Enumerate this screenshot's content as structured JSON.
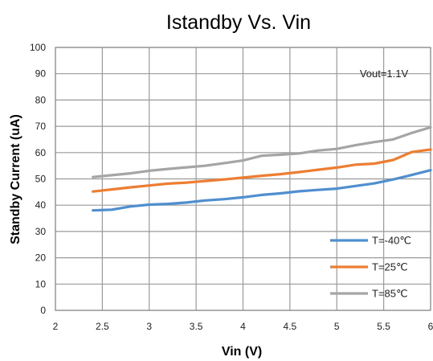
{
  "chart_data": {
    "type": "line",
    "title": "Istandby Vs. Vin",
    "xlabel": "Vin (V)",
    "ylabel": "Standby Current (uA)",
    "xlim": [
      2,
      6
    ],
    "ylim": [
      0,
      100
    ],
    "xticks": [
      "2",
      "2.5",
      "3",
      "3.5",
      "4",
      "4.5",
      "5",
      "5.5",
      "6"
    ],
    "yticks": [
      "0",
      "10",
      "20",
      "30",
      "40",
      "50",
      "60",
      "70",
      "80",
      "90",
      "100"
    ],
    "grid": true,
    "legend_position": "bottom-right",
    "annotation": "Vout=1.1V",
    "x": [
      2.4,
      2.6,
      2.8,
      3.0,
      3.2,
      3.4,
      3.6,
      3.8,
      4.0,
      4.2,
      4.4,
      4.6,
      4.8,
      5.0,
      5.2,
      5.4,
      5.6,
      5.8,
      6.0
    ],
    "series": [
      {
        "name": "T=-40℃",
        "color": "#4f8fcf",
        "values": [
          38,
          38.3,
          39.5,
          40.2,
          40.5,
          41,
          41.8,
          42.3,
          43,
          43.9,
          44.5,
          45.3,
          45.8,
          46.3,
          47.3,
          48.3,
          49.8,
          51.5,
          53.3
        ]
      },
      {
        "name": "T=25℃",
        "color": "#ed7d31",
        "values": [
          45.2,
          46,
          46.8,
          47.5,
          48.2,
          48.6,
          49.2,
          49.8,
          50.5,
          51.2,
          51.8,
          52.6,
          53.5,
          54.3,
          55.4,
          55.8,
          57.2,
          60.2,
          61.2
        ]
      },
      {
        "name": "T=85℃",
        "color": "#a5a5a5",
        "values": [
          50.7,
          51.4,
          52.1,
          53.1,
          53.8,
          54.4,
          55,
          56,
          57,
          58.8,
          59.2,
          59.7,
          60.8,
          61.4,
          62.8,
          64,
          65,
          67.5,
          69.6
        ]
      }
    ]
  }
}
